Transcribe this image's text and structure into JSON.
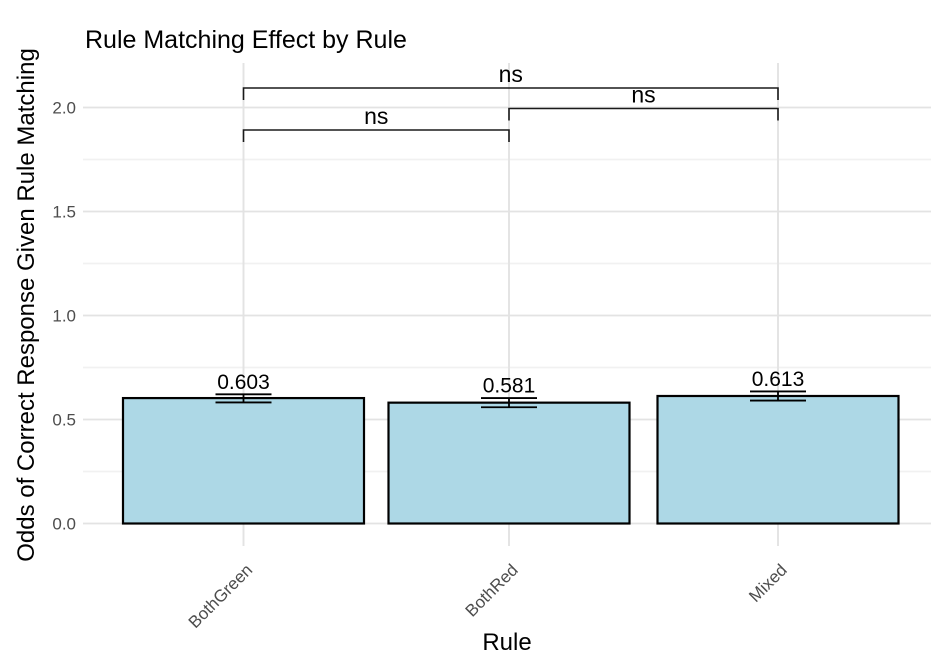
{
  "chart_data": {
    "type": "bar",
    "title": "Rule Matching Effect by Rule",
    "xlabel": "Rule",
    "ylabel": "Odds of Correct Response Given Rule Matching",
    "categories": [
      "BothGreen",
      "BothRed",
      "Mixed"
    ],
    "values": [
      0.603,
      0.581,
      0.613
    ],
    "value_labels": [
      "0.603",
      "0.581",
      "0.613"
    ],
    "error_low": [
      0.582,
      0.559,
      0.591
    ],
    "error_high": [
      0.621,
      0.603,
      0.635
    ],
    "yticks": [
      0.0,
      0.5,
      1.0,
      1.5,
      2.0
    ],
    "ytick_labels": [
      "0.0",
      "0.5",
      "1.0",
      "1.5",
      "2.0"
    ],
    "ylim": [
      -0.11,
      2.33
    ],
    "grid": true,
    "legend_position": "none",
    "significance_brackets": [
      {
        "from": "BothGreen",
        "to": "Mixed",
        "label": "ns"
      },
      {
        "from": "BothRed",
        "to": "Mixed",
        "label": "ns"
      },
      {
        "from": "BothGreen",
        "to": "BothRed",
        "label": "ns"
      }
    ],
    "colors": {
      "bar_fill": "#ADD8E6",
      "bar_stroke": "#000000",
      "grid_major": "#E3E3E3",
      "grid_minor": "#F1F1F1",
      "axis_text": "#4D4D4D",
      "text": "#000000",
      "background": "#FFFFFF"
    }
  }
}
